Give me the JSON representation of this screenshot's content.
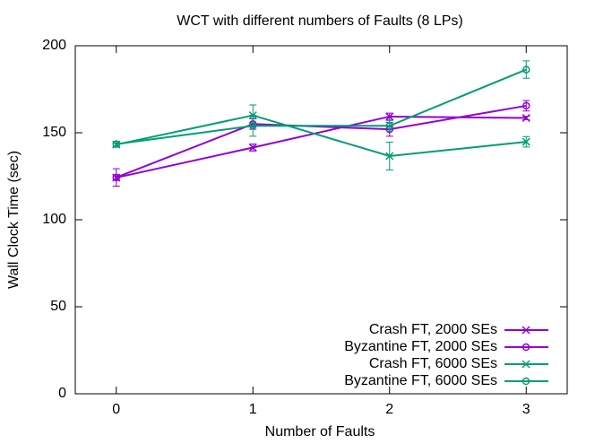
{
  "chart_data": {
    "type": "line",
    "title": "WCT with different numbers of Faults (8 LPs)",
    "xlabel": "Number of Faults",
    "ylabel": "Wall Clock Time (sec)",
    "x": [
      0,
      1,
      2,
      3
    ],
    "xlim": [
      -0.3,
      3.3
    ],
    "xticks": [
      0,
      1,
      2,
      3
    ],
    "ylim": [
      0,
      200
    ],
    "yticks": [
      0,
      50,
      100,
      150,
      200
    ],
    "legend": "bottom-right",
    "series": [
      {
        "name": "Crash FT, 2000 SEs",
        "color": "#9400d3",
        "marker": "x",
        "values": [
          124.2,
          141.5,
          159.3,
          158.5
        ],
        "errors": [
          1,
          2,
          2,
          1
        ]
      },
      {
        "name": "Byzantine FT, 2000 SEs",
        "color": "#9400d3",
        "marker": "circle",
        "values": [
          124.3,
          155,
          152,
          165.5
        ],
        "errors": [
          5,
          3,
          4,
          3
        ]
      },
      {
        "name": "Crash FT, 6000 SEs",
        "color": "#009e73",
        "marker": "x",
        "values": [
          143.2,
          160,
          136.6,
          144.8
        ],
        "errors": [
          1,
          6,
          8,
          3
        ]
      },
      {
        "name": "Byzantine FT, 6000 SEs",
        "color": "#009e73",
        "marker": "circle",
        "values": [
          143.5,
          154,
          154,
          186.3
        ],
        "errors": [
          1.5,
          6,
          3,
          5
        ]
      }
    ]
  }
}
